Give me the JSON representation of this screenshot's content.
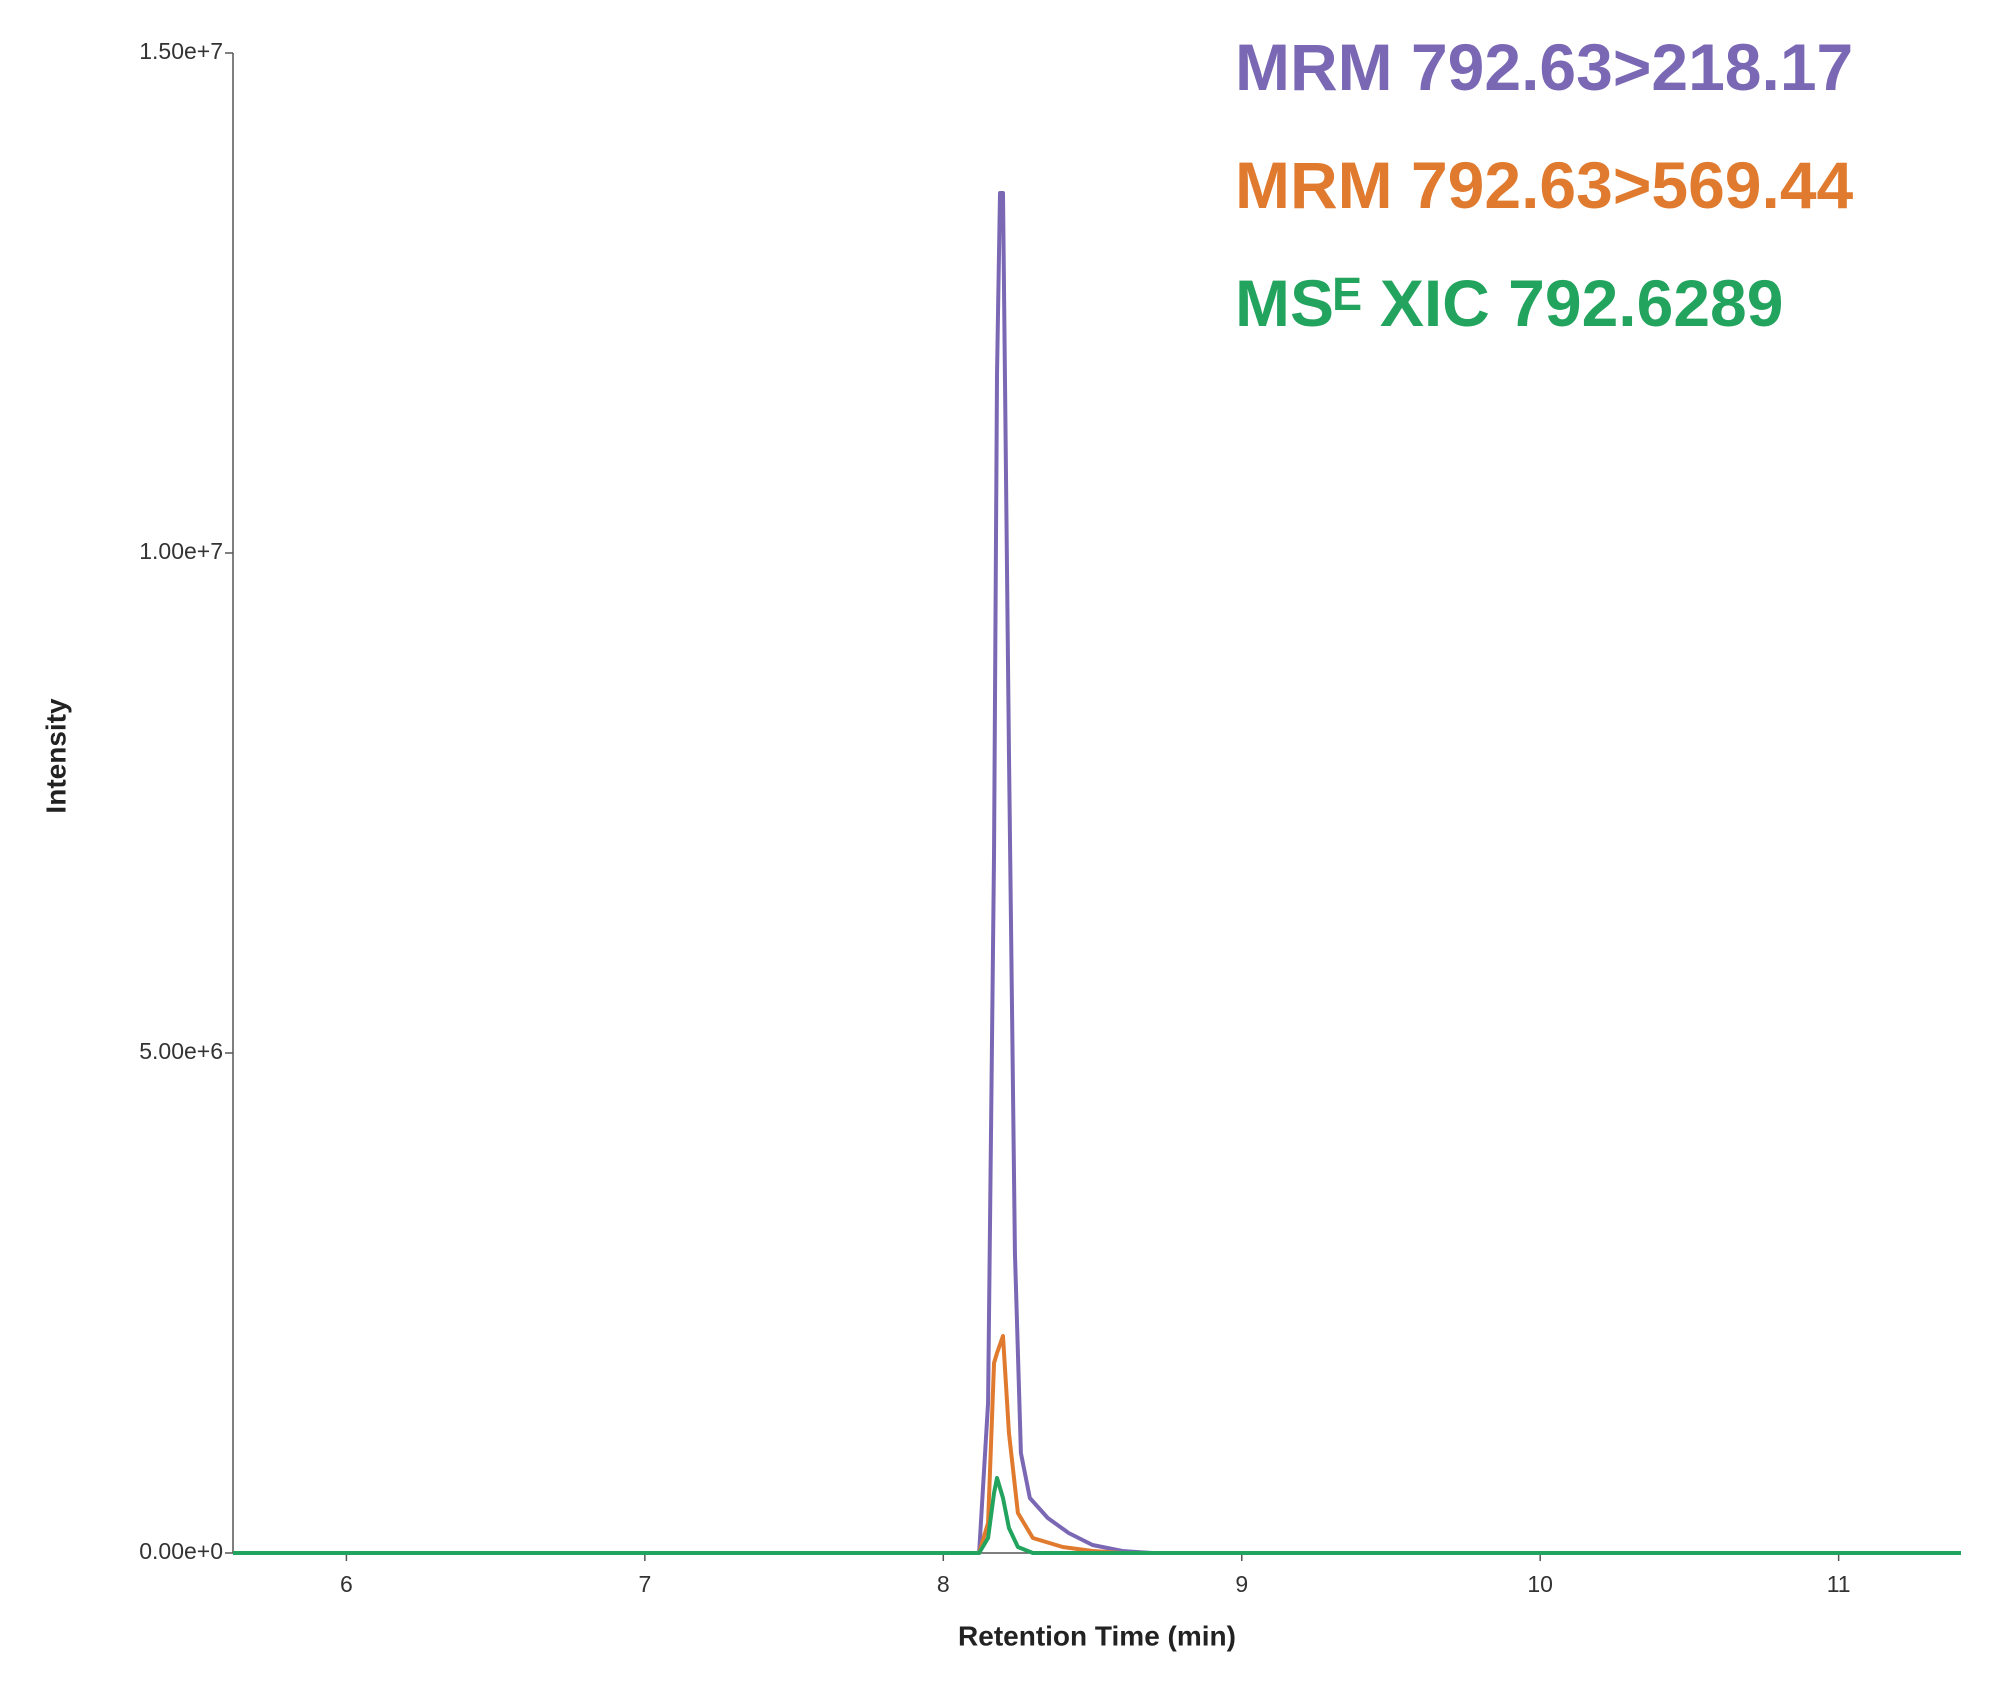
{
  "chart_data": {
    "type": "line",
    "xlabel": "Retention Time (min)",
    "ylabel": "Intensity",
    "xlim": [
      5.62,
      11.41
    ],
    "ylim": [
      0,
      15000000
    ],
    "xticks": [
      6,
      7,
      8,
      9,
      10,
      11
    ],
    "yticks": [
      {
        "value": 0,
        "label": "0.00e+0"
      },
      {
        "value": 5000000,
        "label": "5.00e+6"
      },
      {
        "value": 10000000,
        "label": "1.00e+7"
      },
      {
        "value": 15000000,
        "label": "1.50e+7"
      }
    ],
    "series": [
      {
        "name": "MRM 792.63>218.17",
        "color": "#7a68b4",
        "x": [
          7.5,
          8.0,
          8.12,
          8.15,
          8.17,
          8.18,
          8.19,
          8.2,
          8.22,
          8.24,
          8.26,
          8.29,
          8.35,
          8.42,
          8.5,
          8.6,
          8.7,
          9.0
        ],
        "values": [
          0,
          0,
          0,
          1500000,
          7000000,
          11800000,
          13600000,
          13600000,
          8000000,
          3000000,
          1000000,
          550000,
          350000,
          200000,
          80000,
          20000,
          0,
          0
        ]
      },
      {
        "name": "MRM 792.63>569.44",
        "color": "#e07a2e",
        "x": [
          5.62,
          8.12,
          8.15,
          8.17,
          8.18,
          8.2,
          8.22,
          8.25,
          8.3,
          8.4,
          8.5,
          8.6,
          11.41
        ],
        "values": [
          0,
          0,
          300000,
          1900000,
          2000000,
          2170000,
          1200000,
          400000,
          150000,
          60000,
          20000,
          0,
          0
        ]
      },
      {
        "name": "MSᴱ XIC 792.6289",
        "color": "#22a35e",
        "x": [
          5.62,
          8.12,
          8.15,
          8.17,
          8.18,
          8.2,
          8.22,
          8.25,
          8.3,
          11.41
        ],
        "values": [
          0,
          0,
          150000,
          600000,
          750000,
          550000,
          250000,
          60000,
          0,
          0
        ]
      }
    ]
  }
}
